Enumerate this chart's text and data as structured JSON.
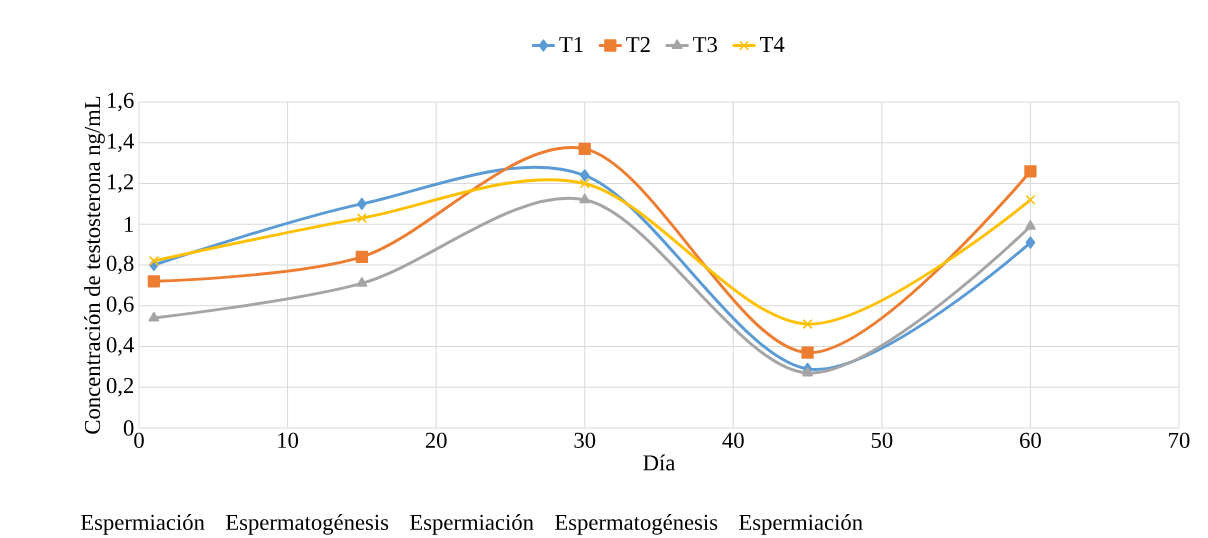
{
  "chart_data": {
    "type": "line",
    "xlabel": "Día",
    "ylabel": "Concentración de testosterona ng/mL",
    "x": [
      1,
      15,
      30,
      45,
      60
    ],
    "series": [
      {
        "name": "T1",
        "color": "#5b9bd5",
        "marker": "diamond",
        "values": [
          0.8,
          1.1,
          1.24,
          0.29,
          0.91
        ]
      },
      {
        "name": "T2",
        "color": "#ed7d31",
        "marker": "square",
        "values": [
          0.72,
          0.84,
          1.37,
          0.37,
          1.26
        ]
      },
      {
        "name": "T3",
        "color": "#a5a5a5",
        "marker": "triangle",
        "values": [
          0.54,
          0.71,
          1.12,
          0.27,
          0.99
        ]
      },
      {
        "name": "T4",
        "color": "#ffc000",
        "marker": "cross",
        "values": [
          0.82,
          1.03,
          1.2,
          0.51,
          1.12
        ]
      }
    ],
    "xlim": [
      0,
      70
    ],
    "xticks": [
      0,
      10,
      20,
      30,
      40,
      50,
      60,
      70
    ],
    "ylim": [
      0,
      1.6
    ],
    "yticks": [
      0,
      {
        "value": 0.2,
        "label": "0,2"
      },
      {
        "value": 0.4,
        "label": "0,4"
      },
      {
        "value": 0.6,
        "label": "0,6"
      },
      {
        "value": 0.8,
        "label": "0,8"
      },
      1,
      {
        "value": 1.2,
        "label": "1,2"
      },
      {
        "value": 1.4,
        "label": "1,4"
      },
      {
        "value": 1.6,
        "label": "1,6"
      }
    ],
    "grid": true,
    "legend": "top",
    "line_style": "solid",
    "annotations": [
      "Espermiación",
      "Espermatogénesis",
      "Espermiación",
      "Espermatogénesis",
      "Espermiación"
    ]
  }
}
